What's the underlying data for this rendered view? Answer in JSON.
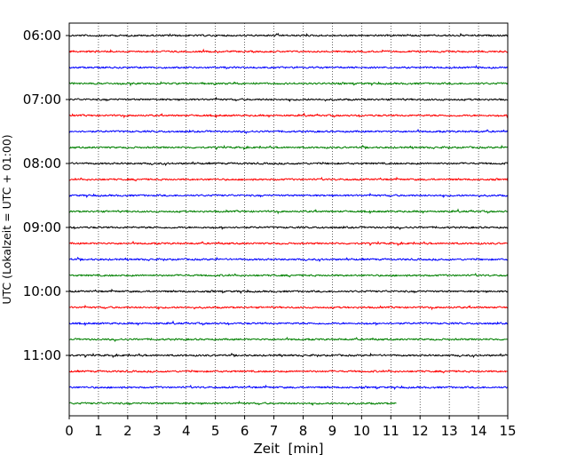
{
  "chart_data": {
    "type": "line",
    "subtype": "helicorder-trace",
    "xlabel": "Zeit  [min]",
    "ylabel": "UTC (Lokalzeit = UTC + 01:00)",
    "xlim": [
      0,
      15
    ],
    "x_ticks": [
      "0",
      "1",
      "2",
      "3",
      "4",
      "5",
      "6",
      "7",
      "8",
      "9",
      "10",
      "11",
      "12",
      "13",
      "14",
      "15"
    ],
    "y_ticks": [
      "06:00",
      "07:00",
      "08:00",
      "09:00",
      "10:00",
      "11:00"
    ],
    "row_interval_minutes": 15,
    "row_count": 24,
    "first_row_utc": "06:00",
    "last_trace_end_minute": 11.2,
    "grid": "vertical-dotted",
    "color_cycle": [
      "#000000",
      "#ff0000",
      "#0000ff",
      "#008000"
    ]
  }
}
